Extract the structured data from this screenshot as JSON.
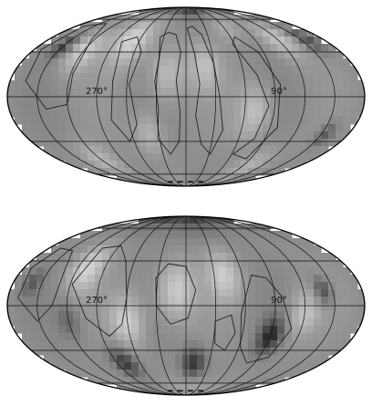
{
  "maps": [
    {
      "id": "top",
      "labels": [
        {
          "text": "270°",
          "lon": 270
        },
        {
          "text": "90°",
          "lon": 90
        }
      ],
      "blobs": [
        {
          "lon": 250,
          "lat": 40,
          "r": 0.23,
          "v": 0.6
        },
        {
          "lon": 300,
          "lat": 30,
          "r": 0.18,
          "v": 0.55
        },
        {
          "lon": 220,
          "lat": -25,
          "r": 0.18,
          "v": 0.35
        },
        {
          "lon": 200,
          "lat": 15,
          "r": 0.22,
          "v": 0.42
        },
        {
          "lon": 160,
          "lat": 20,
          "r": 0.2,
          "v": 0.38
        },
        {
          "lon": 110,
          "lat": -10,
          "r": 0.22,
          "v": 0.45
        },
        {
          "lon": 60,
          "lat": 40,
          "r": 0.18,
          "v": 0.45
        },
        {
          "lon": 120,
          "lat": 50,
          "r": 0.15,
          "v": 0.25
        },
        {
          "lon": 330,
          "lat": 35,
          "r": 0.1,
          "v": -0.65
        },
        {
          "lon": 22,
          "lat": 40,
          "r": 0.12,
          "v": -0.55
        },
        {
          "lon": 25,
          "lat": -25,
          "r": 0.1,
          "v": -0.5
        },
        {
          "lon": 175,
          "lat": 80,
          "r": 0.18,
          "v": -0.7
        },
        {
          "lon": 80,
          "lat": -50,
          "r": 0.18,
          "v": 0.3
        },
        {
          "lon": 300,
          "lat": -45,
          "r": 0.18,
          "v": 0.35
        }
      ],
      "contours": [
        {
          "pts": [
            [
              215,
              42
            ],
            [
              210,
              25
            ],
            [
              212,
              10
            ],
            [
              208,
              -8
            ],
            [
              212,
              -28
            ],
            [
              200,
              -40
            ],
            [
              188,
              -30
            ],
            [
              186,
              -10
            ],
            [
              190,
              10
            ],
            [
              186,
              30
            ],
            [
              194,
              44
            ],
            [
              205,
              46
            ],
            [
              215,
              42
            ]
          ]
        },
        {
          "pts": [
            [
              178,
              50
            ],
            [
              170,
              28
            ],
            [
              166,
              8
            ],
            [
              170,
              -12
            ],
            [
              162,
              -32
            ],
            [
              148,
              -40
            ],
            [
              140,
              -22
            ],
            [
              146,
              0
            ],
            [
              150,
              22
            ],
            [
              158,
              44
            ],
            [
              170,
              52
            ],
            [
              178,
              50
            ]
          ]
        },
        {
          "pts": [
            [
              262,
              38
            ],
            [
              255,
              10
            ],
            [
              258,
              -15
            ],
            [
              245,
              -30
            ],
            [
              232,
              -18
            ],
            [
              238,
              8
            ],
            [
              232,
              30
            ],
            [
              246,
              42
            ],
            [
              262,
              38
            ]
          ]
        },
        {
          "pts": [
            [
              122,
              36
            ],
            [
              106,
              14
            ],
            [
              96,
              -6
            ],
            [
              102,
              -28
            ],
            [
              118,
              -40
            ],
            [
              96,
              -44
            ],
            [
              82,
              -20
            ],
            [
              84,
              8
            ],
            [
              96,
              30
            ],
            [
              114,
              42
            ],
            [
              122,
              36
            ]
          ]
        },
        {
          "pts": [
            [
              348,
              52
            ],
            [
              320,
              55
            ],
            [
              304,
              40
            ],
            [
              298,
              15
            ],
            [
              300,
              -5
            ],
            [
              322,
              -8
            ],
            [
              344,
              10
            ],
            [
              352,
              32
            ],
            [
              348,
              52
            ]
          ]
        }
      ]
    },
    {
      "id": "bottom",
      "labels": [
        {
          "text": "270°",
          "lon": 270
        },
        {
          "text": "90°",
          "lon": 90
        }
      ],
      "blobs": [
        {
          "lon": 290,
          "lat": 25,
          "r": 0.2,
          "v": 0.6
        },
        {
          "lon": 240,
          "lat": -10,
          "r": 0.2,
          "v": 0.55
        },
        {
          "lon": 190,
          "lat": 10,
          "r": 0.24,
          "v": 0.55
        },
        {
          "lon": 140,
          "lat": 20,
          "r": 0.2,
          "v": 0.5
        },
        {
          "lon": 60,
          "lat": -5,
          "r": 0.18,
          "v": 0.45
        },
        {
          "lon": 260,
          "lat": -40,
          "r": 0.14,
          "v": -0.75
        },
        {
          "lon": 170,
          "lat": -40,
          "r": 0.14,
          "v": -0.8
        },
        {
          "lon": 90,
          "lat": -20,
          "r": 0.14,
          "v": -0.9
        },
        {
          "lon": 40,
          "lat": 10,
          "r": 0.1,
          "v": -0.6
        },
        {
          "lon": 340,
          "lat": 15,
          "r": 0.1,
          "v": -0.45
        },
        {
          "lon": 180,
          "lat": 85,
          "r": 0.3,
          "v": -0.8
        },
        {
          "lon": 300,
          "lat": -10,
          "r": 0.14,
          "v": -0.35
        },
        {
          "lon": 160,
          "lat": -70,
          "r": 0.2,
          "v": 0.2
        }
      ],
      "contours": [
        {
          "pts": [
            [
              290,
              40
            ],
            [
              268,
              42
            ],
            [
              250,
              30
            ],
            [
              240,
              5
            ],
            [
              246,
              -12
            ],
            [
              262,
              -20
            ],
            [
              282,
              -8
            ],
            [
              298,
              14
            ],
            [
              290,
              40
            ]
          ]
        },
        {
          "pts": [
            [
              200,
              28
            ],
            [
              180,
              26
            ],
            [
              170,
              10
            ],
            [
              178,
              -8
            ],
            [
              196,
              -12
            ],
            [
              210,
              0
            ],
            [
              212,
              18
            ],
            [
              200,
              28
            ]
          ]
        },
        {
          "pts": [
            [
              148,
              -25
            ],
            [
              135,
              -30
            ],
            [
              128,
              -18
            ],
            [
              134,
              -6
            ],
            [
              150,
              -10
            ],
            [
              148,
              -25
            ]
          ]
        },
        {
          "pts": [
            [
              110,
              20
            ],
            [
              95,
              18
            ],
            [
              82,
              5
            ],
            [
              70,
              -15
            ],
            [
              78,
              -35
            ],
            [
              100,
              -40
            ],
            [
              118,
              -28
            ],
            [
              124,
              -5
            ],
            [
              110,
              20
            ]
          ]
        },
        {
          "pts": [
            [
              345,
              40
            ],
            [
              325,
              38
            ],
            [
              312,
              20
            ],
            [
              315,
              0
            ],
            [
              332,
              -10
            ],
            [
              350,
              5
            ],
            [
              352,
              25
            ],
            [
              345,
              40
            ]
          ]
        }
      ]
    }
  ]
}
